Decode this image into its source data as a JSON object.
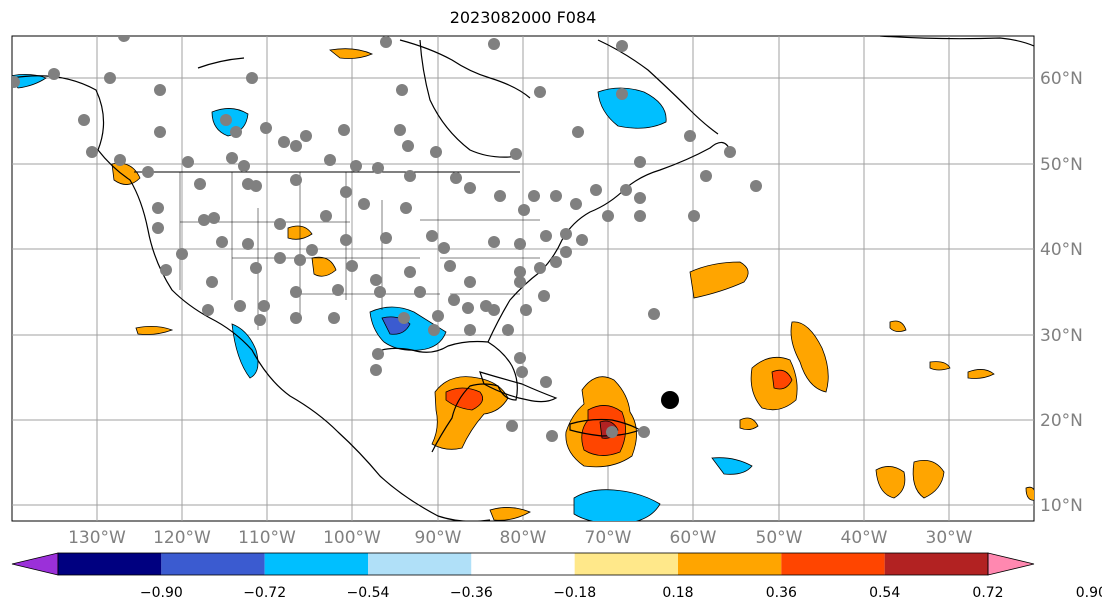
{
  "title": "2023082000 F084",
  "map": {
    "lon_labels": [
      "130°W",
      "120°W",
      "110°W",
      "100°W",
      "90°W",
      "80°W",
      "70°W",
      "60°W",
      "50°W",
      "40°W",
      "30°W"
    ],
    "lat_labels": [
      "60°N",
      "50°N",
      "40°N",
      "30°N",
      "20°N",
      "10°N"
    ],
    "grid_color": "#a0a0a0",
    "coast_color": "#000000",
    "station_color": "#808080",
    "center_marker_color": "#000000"
  },
  "colorbar": {
    "tick_labels": [
      "−0.90",
      "−0.72",
      "−0.54",
      "−0.36",
      "−0.18",
      "0.18",
      "0.36",
      "0.54",
      "0.72",
      "0.90"
    ],
    "colors": [
      "#9b30d9",
      "#000080",
      "#3b5bd0",
      "#00bfff",
      "#b0e0f8",
      "#ffffff",
      "#ffe88a",
      "#ffa500",
      "#ff4500",
      "#b22222",
      "#ff88b0"
    ]
  }
}
